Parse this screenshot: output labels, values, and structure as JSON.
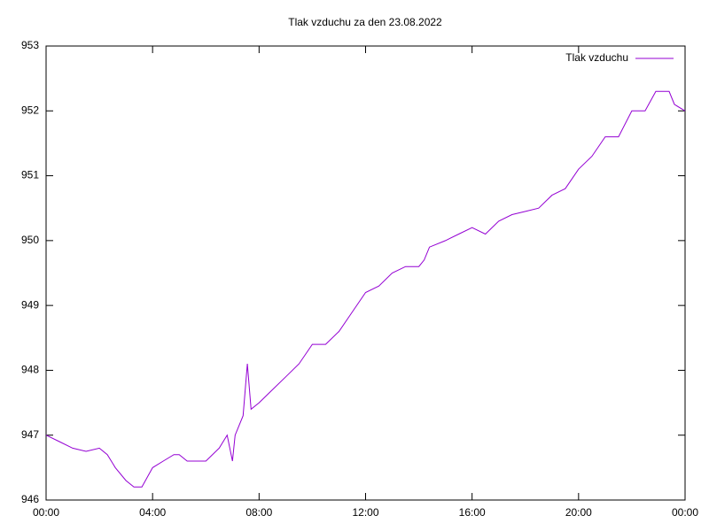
{
  "chart_data": {
    "type": "line",
    "title": "Tlak vzduchu za den 23.08.2022",
    "x": [
      0,
      0.5,
      1,
      1.5,
      2,
      2.3,
      2.6,
      3.0,
      3.3,
      3.6,
      4.0,
      4.4,
      4.8,
      5.0,
      5.3,
      6.0,
      6.5,
      6.8,
      7.0,
      7.1,
      7.4,
      7.56,
      7.7,
      8.0,
      8.5,
      9.0,
      9.5,
      10.0,
      10.5,
      11.0,
      11.5,
      12.0,
      12.5,
      13.0,
      13.5,
      14.0,
      14.2,
      14.4,
      15.0,
      15.5,
      16.0,
      16.5,
      17.0,
      17.5,
      18.0,
      18.5,
      19.0,
      19.5,
      20.0,
      20.5,
      21.0,
      21.5,
      22.0,
      22.5,
      22.9,
      23.4,
      23.6,
      24.0
    ],
    "series": [
      {
        "name": "Tlak vzduchu",
        "color": "#9400d3",
        "values": [
          947.0,
          946.9,
          946.8,
          946.75,
          946.8,
          946.7,
          946.5,
          946.3,
          946.2,
          946.2,
          946.5,
          946.6,
          946.7,
          946.7,
          946.6,
          946.6,
          946.8,
          947.0,
          946.6,
          947.0,
          947.3,
          948.1,
          947.4,
          947.5,
          947.7,
          947.9,
          948.1,
          948.4,
          948.4,
          948.6,
          948.9,
          949.2,
          949.3,
          949.5,
          949.6,
          949.6,
          949.7,
          949.9,
          950.0,
          950.1,
          950.2,
          950.1,
          950.3,
          950.4,
          950.45,
          950.5,
          950.7,
          950.8,
          951.1,
          951.3,
          951.6,
          951.6,
          952.0,
          952.0,
          952.3,
          952.3,
          952.1,
          952.0
        ]
      }
    ],
    "xlim": [
      0,
      24
    ],
    "xticks": [
      {
        "value": 0,
        "label": "00:00"
      },
      {
        "value": 4,
        "label": "04:00"
      },
      {
        "value": 8,
        "label": "08:00"
      },
      {
        "value": 12,
        "label": "12:00"
      },
      {
        "value": 16,
        "label": "16:00"
      },
      {
        "value": 20,
        "label": "20:00"
      },
      {
        "value": 24,
        "label": "00:00"
      }
    ],
    "ylim": [
      946,
      953
    ],
    "yticks": [
      946,
      947,
      948,
      949,
      950,
      951,
      952,
      953
    ],
    "legend": "top-right"
  }
}
